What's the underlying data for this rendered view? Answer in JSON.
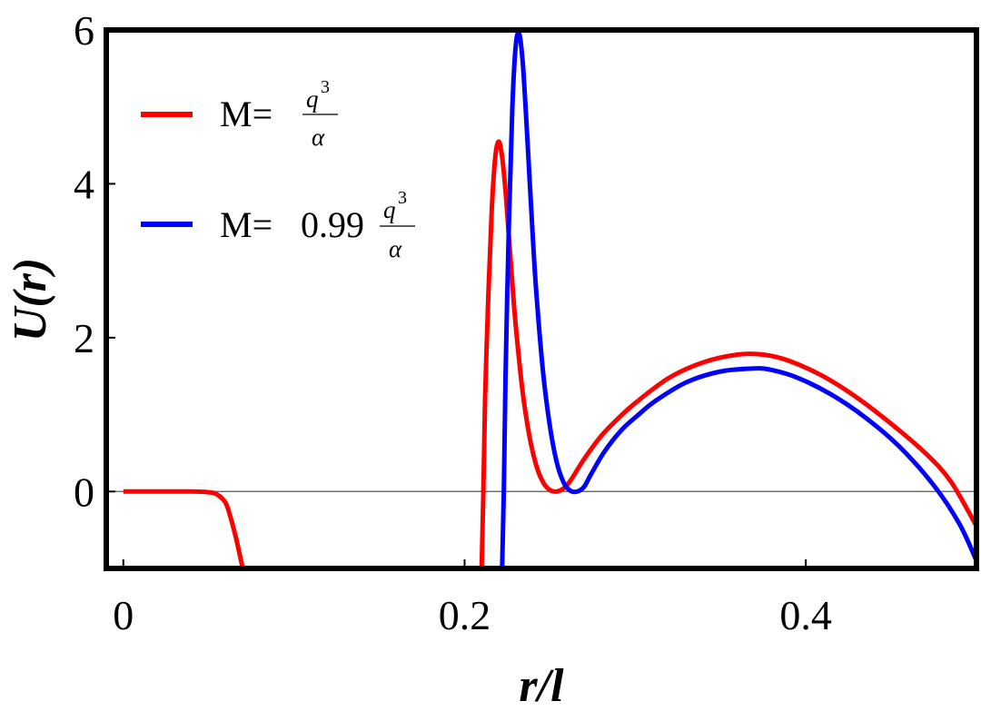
{
  "chart_data": {
    "type": "line",
    "xlabel": "r/l",
    "ylabel": "U(r)",
    "xlim": [
      -0.01,
      0.5
    ],
    "ylim": [
      -1,
      6
    ],
    "x_ticks": [
      "0",
      "0.2",
      "0.4"
    ],
    "y_ticks": [
      "0",
      "2",
      "4",
      "6"
    ],
    "x_tick_values": [
      0,
      0.2,
      0.4
    ],
    "y_tick_values": [
      0,
      2,
      4,
      6
    ],
    "zero_line": true,
    "grid": false,
    "legend_position": "top-left",
    "series": [
      {
        "name": "M= q3/α",
        "legend_prefix": "M=",
        "legend_coef": "",
        "legend_num": "q",
        "legend_exp": "3",
        "legend_den": "α",
        "color": "#ff0000",
        "segments": [
          {
            "x": [
              0.0,
              0.02,
              0.04,
              0.05,
              0.055,
              0.06,
              0.063,
              0.066,
              0.068,
              0.07
            ],
            "y": [
              0.0,
              0.0,
              0.0,
              -0.01,
              -0.04,
              -0.15,
              -0.35,
              -0.6,
              -0.8,
              -1.0
            ]
          },
          {
            "x": [
              0.21,
              0.211,
              0.212,
              0.214,
              0.216,
              0.218,
              0.22,
              0.222,
              0.224,
              0.226,
              0.228,
              0.23,
              0.234,
              0.238,
              0.242,
              0.246,
              0.25,
              0.254,
              0.258,
              0.262,
              0.27,
              0.28,
              0.29,
              0.3,
              0.32,
              0.34,
              0.36,
              0.375,
              0.39,
              0.41,
              0.43,
              0.45,
              0.47,
              0.485,
              0.5
            ],
            "y": [
              -1.0,
              0.0,
              1.2,
              2.6,
              3.7,
              4.35,
              4.55,
              4.35,
              3.9,
              3.3,
              2.7,
              2.15,
              1.3,
              0.72,
              0.34,
              0.12,
              0.02,
              0.0,
              0.04,
              0.14,
              0.42,
              0.72,
              0.95,
              1.15,
              1.48,
              1.68,
              1.78,
              1.78,
              1.7,
              1.5,
              1.22,
              0.88,
              0.5,
              0.13,
              -0.45
            ]
          }
        ]
      },
      {
        "name": "M= 0.99 q3/α",
        "legend_prefix": "M=",
        "legend_coef": "0.99",
        "legend_num": "q",
        "legend_exp": "3",
        "legend_den": "α",
        "color": "#0000ff",
        "segments": [
          {
            "x": [
              0.222,
              0.223,
              0.224,
              0.226,
              0.228,
              0.23,
              0.232,
              0.234,
              0.236,
              0.238,
              0.24,
              0.242,
              0.246,
              0.25,
              0.254,
              0.258,
              0.262,
              0.266,
              0.27,
              0.274,
              0.282,
              0.292,
              0.302,
              0.312,
              0.33,
              0.35,
              0.37,
              0.38,
              0.395,
              0.415,
              0.435,
              0.455,
              0.475,
              0.49,
              0.5
            ],
            "y": [
              -1.0,
              0.0,
              1.5,
              3.5,
              5.0,
              5.8,
              5.95,
              5.6,
              4.9,
              4.1,
              3.3,
              2.6,
              1.55,
              0.85,
              0.38,
              0.12,
              0.01,
              0.0,
              0.06,
              0.22,
              0.52,
              0.8,
              1.0,
              1.18,
              1.42,
              1.56,
              1.6,
              1.58,
              1.48,
              1.26,
              0.96,
              0.58,
              0.08,
              -0.42,
              -0.9
            ]
          }
        ]
      }
    ]
  }
}
